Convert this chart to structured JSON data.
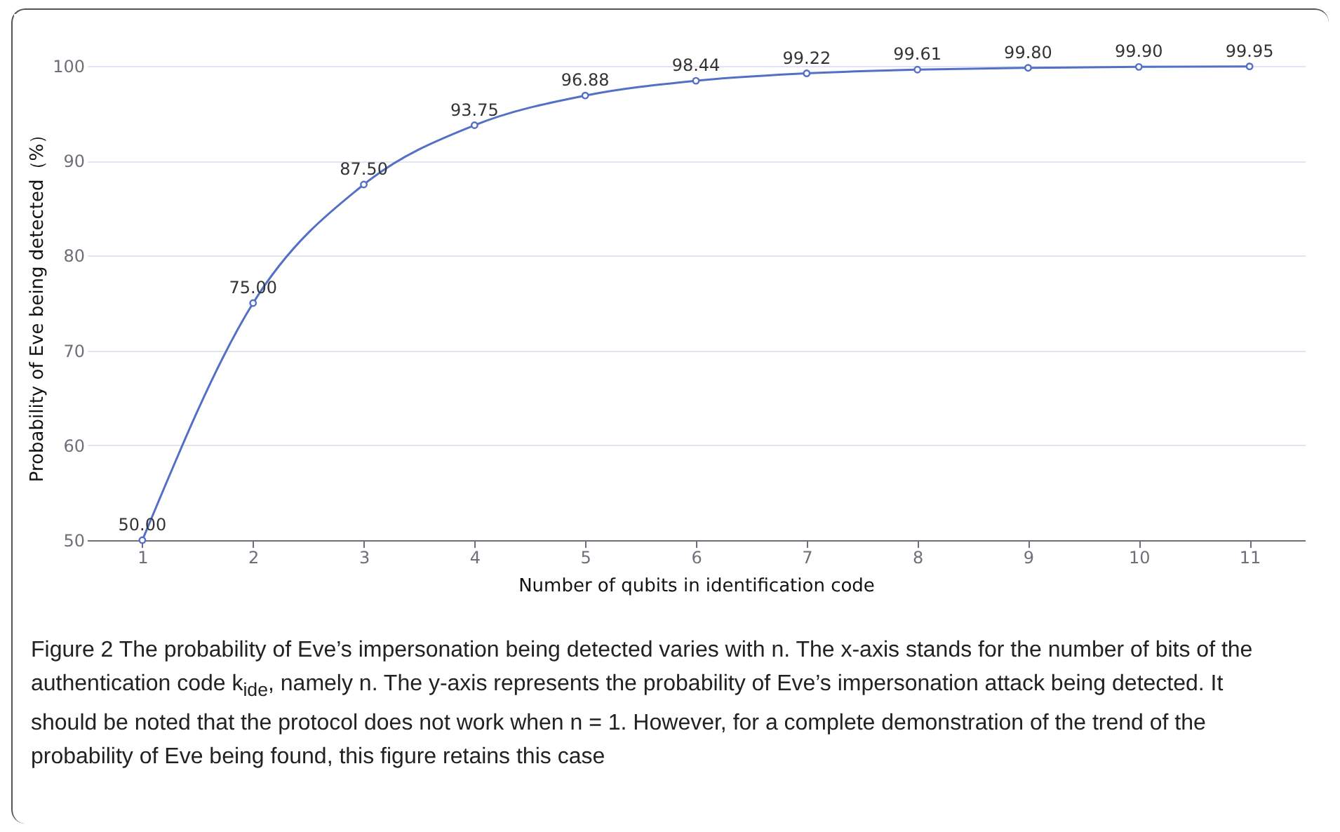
{
  "chart_data": {
    "type": "line",
    "xlabel": "Number of qubits in identification code",
    "ylabel": "Probability of Eve being detected（%）",
    "categories": [
      "1",
      "2",
      "3",
      "4",
      "5",
      "6",
      "7",
      "8",
      "9",
      "10",
      "11"
    ],
    "series": [
      {
        "color": "#5470c6",
        "values": [
          50.0,
          75.0,
          87.5,
          93.75,
          96.88,
          98.44,
          99.22,
          99.61,
          99.8,
          99.9,
          99.95
        ],
        "value_labels": [
          "50.00",
          "75.00",
          "87.50",
          "93.75",
          "96.88",
          "98.44",
          "99.22",
          "99.61",
          "99.80",
          "99.90",
          "99.95"
        ]
      }
    ],
    "ylim": [
      50,
      100
    ],
    "yticks": [
      50,
      60,
      70,
      80,
      90,
      100
    ],
    "grid": "y",
    "marker": "circle",
    "line_style": "solid",
    "annotations": [
      "Figure 2  The probability of Eve’s impersonation being detected varies with n. The x-axis stands for the number of bits of the authentication code k$_{ide}$, namely n. The y-axis represents the probability of Eve’s impersonation attack being detected. It should be noted that the protocol does not work when n = 1. However, for a complete demonstration of the trend of the probability of Eve being found, this figure retains this case"
    ]
  }
}
